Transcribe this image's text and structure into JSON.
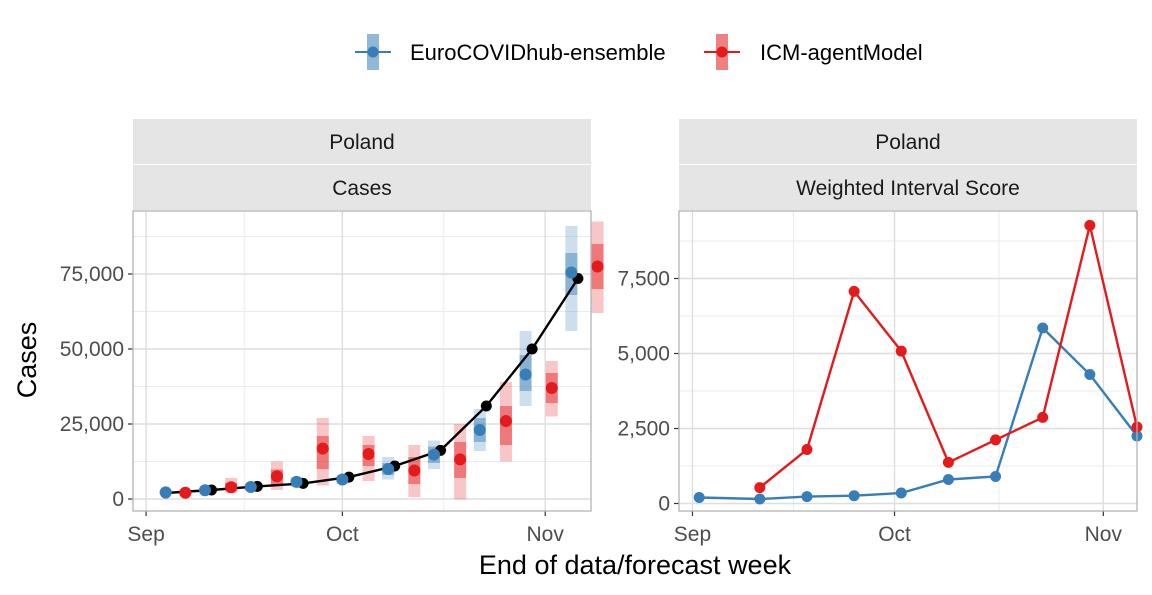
{
  "figure": {
    "ylabel": "Cases",
    "xlabel": "End of data/forecast week"
  },
  "legend": {
    "position": "top",
    "entries": [
      {
        "name": "EuroCOVIDhub-ensemble",
        "color": "#377EB8"
      },
      {
        "name": "ICM-agentModel",
        "color": "#E41A1C"
      }
    ]
  },
  "chart_data": [
    {
      "type": "line",
      "panel": "left",
      "facet_row1": "Poland",
      "facet_row2": "Cases",
      "x_ticks": [
        {
          "label": "Sep",
          "date": "2021-09-01"
        },
        {
          "label": "Oct",
          "date": "2021-10-01"
        },
        {
          "label": "Nov",
          "date": "2021-11-01"
        }
      ],
      "x_range": [
        "2021-08-30",
        "2021-11-08"
      ],
      "y_ticks": [
        0,
        25000,
        50000,
        75000
      ],
      "y_tick_labels": [
        "0",
        "25,000",
        "50,000",
        "75,000"
      ],
      "ylim": [
        -4000,
        96000
      ],
      "grid": true,
      "observed": {
        "color": "#000000",
        "x": [
          "2021-09-04",
          "2021-09-11",
          "2021-09-18",
          "2021-09-25",
          "2021-10-02",
          "2021-10-09",
          "2021-10-16",
          "2021-10-23",
          "2021-10-30",
          "2021-11-06"
        ],
        "y": [
          2000,
          3000,
          4200,
          5200,
          7300,
          11000,
          16200,
          31000,
          50000,
          73500
        ]
      },
      "forecasts": [
        {
          "model": "EuroCOVIDhub-ensemble",
          "color": "#377EB8",
          "x": [
            "2021-09-04",
            "2021-09-10",
            "2021-09-17",
            "2021-09-24",
            "2021-10-01",
            "2021-10-08",
            "2021-10-15",
            "2021-10-22",
            "2021-10-29",
            "2021-11-05"
          ],
          "median": [
            2200,
            2900,
            4000,
            5700,
            6500,
            10000,
            14800,
            23000,
            41500,
            75500
          ],
          "inner": [
            [
              1800,
              2600
            ],
            [
              2500,
              3300
            ],
            [
              3400,
              4600
            ],
            [
              4800,
              6500
            ],
            [
              5700,
              7300
            ],
            [
              8000,
              12000
            ],
            [
              12000,
              17500
            ],
            [
              19000,
              27000
            ],
            [
              36000,
              48000
            ],
            [
              68000,
              82000
            ]
          ],
          "outer": [
            [
              1400,
              3000
            ],
            [
              2100,
              3700
            ],
            [
              2800,
              5300
            ],
            [
              4000,
              7400
            ],
            [
              5000,
              8000
            ],
            [
              6500,
              14000
            ],
            [
              10000,
              19500
            ],
            [
              16000,
              30000
            ],
            [
              31000,
              56000
            ],
            [
              56000,
              91000
            ]
          ]
        },
        {
          "model": "ICM-agentModel",
          "color": "#E41A1C",
          "x": [
            "2021-09-07",
            "2021-09-14",
            "2021-09-21",
            "2021-09-28",
            "2021-10-05",
            "2021-10-12",
            "2021-10-19",
            "2021-10-26",
            "2021-11-02",
            "2021-11-09"
          ],
          "median": [
            2100,
            3900,
            7600,
            16800,
            15000,
            9500,
            13200,
            26000,
            37000,
            77500
          ],
          "inner": [
            [
              1700,
              2600
            ],
            [
              2800,
              5400
            ],
            [
              4600,
              9800
            ],
            [
              10000,
              21000
            ],
            [
              11000,
              18000
            ],
            [
              5000,
              14000
            ],
            [
              7000,
              19000
            ],
            [
              18000,
              31000
            ],
            [
              32000,
              42000
            ],
            [
              70000,
              85000
            ]
          ],
          "outer": [
            [
              1200,
              3200
            ],
            [
              2000,
              7000
            ],
            [
              3000,
              12500
            ],
            [
              4500,
              27000
            ],
            [
              6000,
              21000
            ],
            [
              600,
              18000
            ],
            [
              -100,
              25000
            ],
            [
              12500,
              39000
            ],
            [
              27500,
              46000
            ],
            [
              62000,
              92500
            ]
          ]
        }
      ]
    },
    {
      "type": "line",
      "panel": "right",
      "facet_row1": "Poland",
      "facet_row2": "Weighted Interval Score",
      "x_ticks": [
        {
          "label": "Sep",
          "date": "2021-09-01"
        },
        {
          "label": "Oct",
          "date": "2021-10-01"
        },
        {
          "label": "Nov",
          "date": "2021-11-01"
        }
      ],
      "x_range": [
        "2021-08-30",
        "2021-11-06"
      ],
      "y_ticks": [
        0,
        2500,
        5000,
        7500
      ],
      "y_tick_labels": [
        "0",
        "2,500",
        "5,000",
        "7,500"
      ],
      "ylim": [
        -250,
        9750
      ],
      "grid": true,
      "series": [
        {
          "name": "EuroCOVIDhub-ensemble",
          "color": "#377EB8",
          "x": [
            "2021-09-02",
            "2021-09-11",
            "2021-09-18",
            "2021-09-25",
            "2021-10-02",
            "2021-10-09",
            "2021-10-16",
            "2021-10-23",
            "2021-10-30",
            "2021-11-06"
          ],
          "values": [
            200,
            150,
            230,
            260,
            350,
            800,
            900,
            5850,
            4300,
            2250
          ]
        },
        {
          "name": "ICM-agentModel",
          "color": "#E41A1C",
          "x": [
            "2021-09-11",
            "2021-09-18",
            "2021-09-25",
            "2021-10-02",
            "2021-10-09",
            "2021-10-16",
            "2021-10-23",
            "2021-10-30",
            "2021-11-06"
          ],
          "values": [
            530,
            1800,
            7070,
            5080,
            1370,
            2120,
            2870,
            9270,
            2550
          ]
        }
      ]
    }
  ]
}
